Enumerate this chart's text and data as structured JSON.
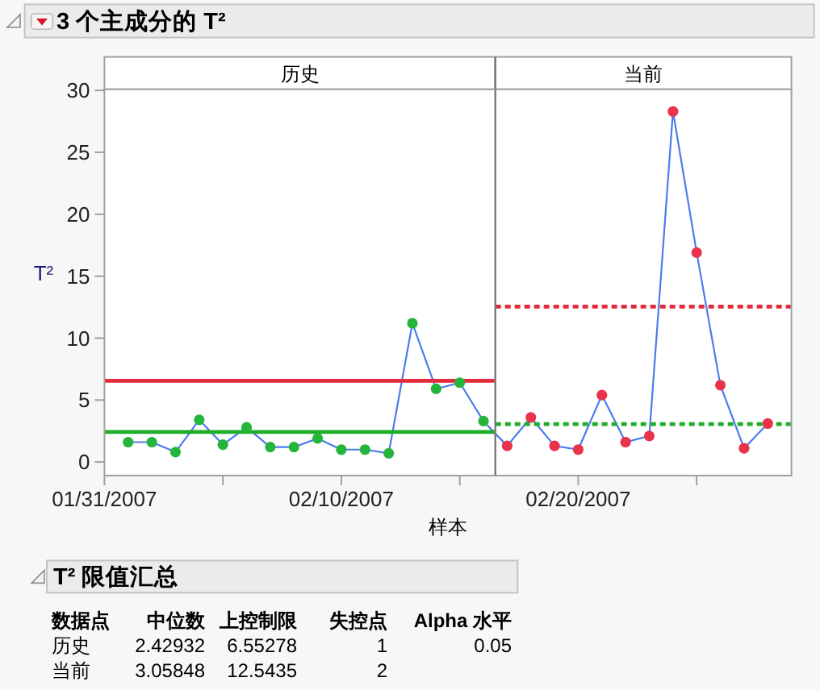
{
  "chart_data": [
    {
      "type": "line",
      "title": "3 个主成分的 T²",
      "xlabel": "样本",
      "ylabel": "T²",
      "x": [
        "2007-02-01",
        "2007-02-02",
        "2007-02-03",
        "2007-02-04",
        "2007-02-05",
        "2007-02-06",
        "2007-02-07",
        "2007-02-08",
        "2007-02-09",
        "2007-02-10",
        "2007-02-11",
        "2007-02-12",
        "2007-02-13",
        "2007-02-14",
        "2007-02-15",
        "2007-02-16",
        "2007-02-17",
        "2007-02-18",
        "2007-02-19",
        "2007-02-20",
        "2007-02-21",
        "2007-02-22",
        "2007-02-23",
        "2007-02-24",
        "2007-02-25",
        "2007-02-26",
        "2007-02-27",
        "2007-02-28"
      ],
      "series": [
        {
          "type": "line",
          "color": "#4b7bec",
          "marker": "circle",
          "values": [
            1.6,
            1.6,
            0.8,
            3.4,
            1.4,
            2.8,
            1.2,
            1.2,
            1.9,
            1.0,
            1.0,
            0.7,
            11.2,
            5.9,
            6.4,
            3.3,
            1.3,
            3.6,
            1.3,
            1.0,
            5.4,
            1.6,
            2.1,
            28.3,
            16.9,
            6.2,
            1.1,
            3.1
          ],
          "colors": [
            "#25b53a",
            "#25b53a",
            "#25b53a",
            "#25b53a",
            "#25b53a",
            "#25b53a",
            "#25b53a",
            "#25b53a",
            "#25b53a",
            "#25b53a",
            "#25b53a",
            "#25b53a",
            "#25b53a",
            "#25b53a",
            "#25b53a",
            "#25b53a",
            "#e8334a",
            "#e8334a",
            "#e8334a",
            "#e8334a",
            "#e8334a",
            "#e8334a",
            "#e8334a",
            "#e8334a",
            "#e8334a",
            "#e8334a",
            "#e8334a",
            "#e8334a"
          ]
        },
        {
          "type": "line",
          "x": [
            "2007-01-31",
            "2007-02-16T12:00"
          ],
          "values": [
            6.55278,
            6.55278
          ],
          "color": "#e52a3b",
          "line_style": "solid"
        },
        {
          "type": "line",
          "x": [
            "2007-01-31",
            "2007-02-16T12:00"
          ],
          "values": [
            2.42932,
            2.42932
          ],
          "color": "#1fae2a",
          "line_style": "solid"
        },
        {
          "type": "line",
          "x": [
            "2007-02-16T12:00",
            "2007-03-01"
          ],
          "values": [
            12.5435,
            12.5435
          ],
          "color": "#e52a3b",
          "line_style": "dotted"
        },
        {
          "type": "line",
          "x": [
            "2007-02-16T12:00",
            "2007-03-01"
          ],
          "values": [
            3.05848,
            3.05848
          ],
          "color": "#1fae2a",
          "line_style": "dotted"
        }
      ],
      "ref_lines": [
        {
          "axis": "x",
          "value": "2007-02-16T12:00",
          "color": "#787878"
        }
      ],
      "annotations": [
        "历史",
        "当前"
      ],
      "xlim": [
        "2007-01-31",
        "2007-03-01"
      ],
      "xticks": [
        {
          "value": "2007-01-31",
          "label": "01/31/2007"
        },
        {
          "value": "2007-02-05",
          "label": null
        },
        {
          "value": "2007-02-10",
          "label": "02/10/2007"
        },
        {
          "value": "2007-02-15",
          "label": null
        },
        {
          "value": "2007-02-20",
          "label": "02/20/2007"
        },
        {
          "value": "2007-02-25",
          "label": null
        }
      ],
      "ylim": [
        -1.1,
        30.1
      ],
      "yticks": [
        0,
        5,
        10,
        15,
        20,
        25,
        30
      ],
      "grid": false
    },
    {
      "type": "other",
      "title": "T² 限值汇总",
      "annotations": [
        "数据点",
        "中位数",
        "上控制限",
        "失控点",
        "Alpha 水平",
        "历史",
        "2.42932",
        "6.55278",
        "1",
        "0.05",
        "当前",
        "3.05848",
        "12.5435",
        "2"
      ]
    }
  ]
}
